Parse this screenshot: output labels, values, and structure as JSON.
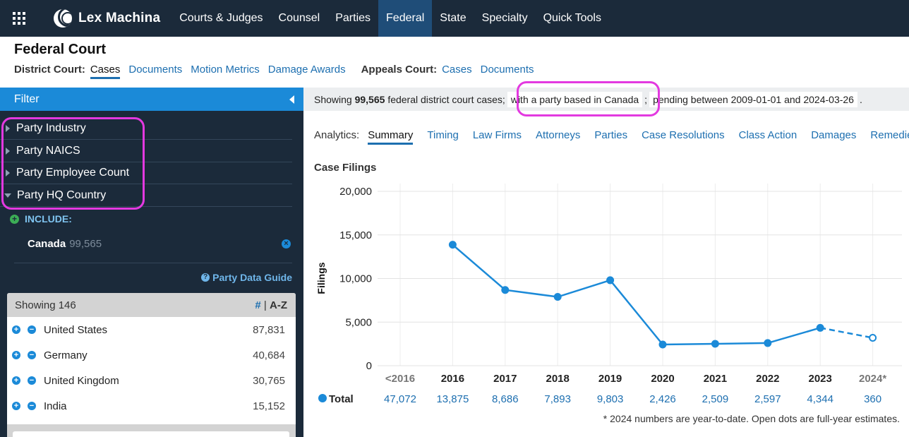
{
  "topnav": {
    "brand": "Lex Machina",
    "items": [
      "Courts & Judges",
      "Counsel",
      "Parties",
      "Federal",
      "State",
      "Specialty",
      "Quick Tools"
    ],
    "active": "Federal"
  },
  "header": {
    "title": "Federal Court",
    "district_label": "District Court:",
    "district_links": [
      "Cases",
      "Documents",
      "Motion Metrics",
      "Damage Awards"
    ],
    "appeals_label": "Appeals Court:",
    "appeals_links": [
      "Cases",
      "Documents"
    ]
  },
  "sidebar": {
    "filter_label": "Filter",
    "facets": [
      "Party Industry",
      "Party NAICS",
      "Party Employee Count",
      "Party HQ Country"
    ],
    "include_label": "INCLUDE:",
    "included": {
      "name": "Canada",
      "count": "99,565"
    },
    "guide_label": "Party Data Guide",
    "list": {
      "showing": "Showing 146",
      "sort_hash": "#",
      "sort_sep": " | ",
      "sort_az": "A-Z",
      "rows": [
        {
          "name": "United States",
          "count": "87,831"
        },
        {
          "name": "Germany",
          "count": "40,684"
        },
        {
          "name": "United Kingdom",
          "count": "30,765"
        },
        {
          "name": "India",
          "count": "15,152"
        }
      ]
    }
  },
  "summary": {
    "prefix": "Showing ",
    "count": "99,565",
    "mid": " federal district court cases;",
    "chip1": "with a party based in Canada",
    "sep": ";",
    "chip2": "pending between 2009-01-01 and 2024-03-26",
    "end": "."
  },
  "analytics": {
    "label": "Analytics:",
    "tabs": [
      "Summary",
      "Timing",
      "Law Firms",
      "Attorneys",
      "Parties",
      "Case Resolutions",
      "Class Action",
      "Damages",
      "Remedies"
    ]
  },
  "chart_title": "Case Filings",
  "chart_data": {
    "type": "line",
    "title": "Case Filings",
    "ylabel": "Filings",
    "ylim": [
      0,
      20000
    ],
    "yticks": [
      "0",
      "5,000",
      "10,000",
      "15,000",
      "20,000"
    ],
    "categories": [
      "<2016",
      "2016",
      "2017",
      "2018",
      "2019",
      "2020",
      "2021",
      "2022",
      "2023",
      "2024*"
    ],
    "series": [
      {
        "name": "Total",
        "values": [
          null,
          13875,
          8686,
          7893,
          9803,
          2426,
          2509,
          2597,
          4344,
          3200
        ]
      }
    ],
    "totals_row_label": "Total",
    "totals": [
      "47,072",
      "13,875",
      "8,686",
      "7,893",
      "9,803",
      "2,426",
      "2,509",
      "2,597",
      "4,344",
      "360"
    ],
    "estimated_last_point": true,
    "color": "#1b8ad8"
  },
  "footnote": "* 2024 numbers are year-to-date. Open dots are full-year estimates."
}
